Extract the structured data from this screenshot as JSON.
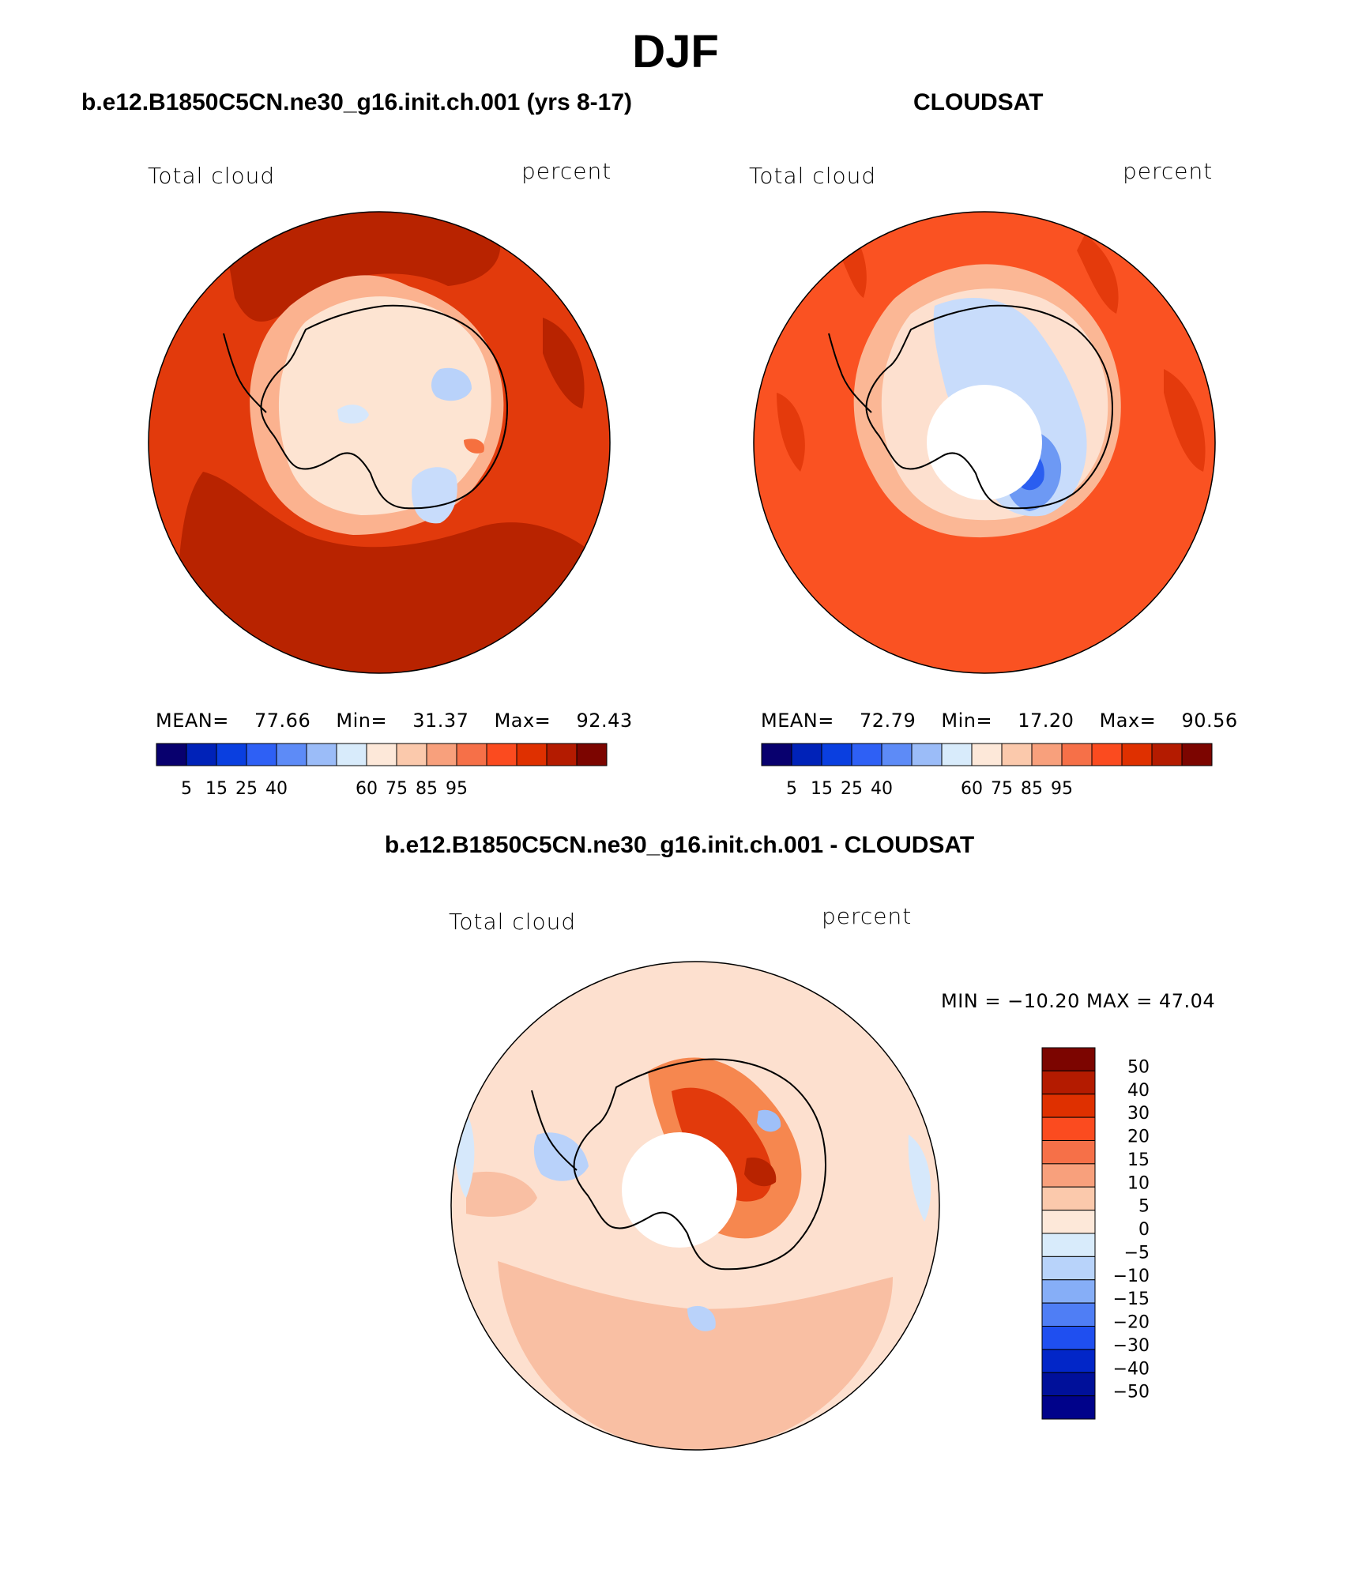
{
  "figure": {
    "title": "DJF"
  },
  "panels": [
    {
      "title": "b.e12.B1850C5CN.ne30_g16.init.ch.001 (yrs 8-17)",
      "left_label": "Total cloud",
      "right_label": "percent",
      "stats": {
        "mean_label": "MEAN=",
        "mean": "77.66",
        "min_label": "Min=",
        "min": "31.37",
        "max_label": "Max=",
        "max": "92.43"
      },
      "has_polar_hole": false
    },
    {
      "title": "CLOUDSAT",
      "left_label": "Total cloud",
      "right_label": "percent",
      "stats": {
        "mean_label": "MEAN=",
        "mean": "72.79",
        "min_label": "Min=",
        "min": "17.20",
        "max_label": "Max=",
        "max": "90.56"
      },
      "has_polar_hole": true
    },
    {
      "title": "b.e12.B1850C5CN.ne30_g16.init.ch.001 - CLOUDSAT",
      "left_label": "Total cloud",
      "right_label": "percent",
      "stats_line": "MIN = −10.20 MAX =   47.04",
      "has_polar_hole": true
    }
  ],
  "colorbar_horizontal": {
    "colors": [
      "#08006e",
      "#0022b8",
      "#0a3fe0",
      "#2e60f5",
      "#5d8bf7",
      "#9bbcf8",
      "#d8ebfb",
      "#fde8d9",
      "#fbc9ac",
      "#f8a07c",
      "#f67048",
      "#fb4b1f",
      "#df3000",
      "#b41b00",
      "#7c0500"
    ],
    "tick_labels": [
      "5",
      "15",
      "25",
      "40",
      "60",
      "75",
      "85",
      "95"
    ]
  },
  "colorbar_vertical": {
    "colors_top_to_bottom": [
      "#7c0500",
      "#b41b00",
      "#df3000",
      "#fb4b1f",
      "#f67048",
      "#f8a07c",
      "#fbc9ac",
      "#fde8d9",
      "#d8ebfb",
      "#b8d3fa",
      "#86aef7",
      "#4f7ef5",
      "#1f4ff0",
      "#0226c8",
      "#00109a",
      "#00028a"
    ],
    "tick_labels": [
      "50",
      "40",
      "30",
      "20",
      "15",
      "10",
      "5",
      "0",
      "−5",
      "−10",
      "−15",
      "−20",
      "−30",
      "−40",
      "−50"
    ]
  },
  "map_colors": {
    "model": {
      "ocean": "#e23a0c",
      "ocean_dark": "#b82300",
      "coast": "#fdbf9c",
      "ice": "#fde4d2",
      "blue_patch": "#c8dcfb",
      "blue_deep": "#9fc0f8"
    },
    "cloudsat": {
      "ocean": "#fa5222",
      "ocean_dark": "#e43a0c",
      "coast": "#fbb795",
      "ice": "#fde0cf",
      "blue_patch": "#c8dcfb",
      "blue_deep": "#6d99f4",
      "blue_core": "#2a5ef0"
    },
    "diff": {
      "ocean": "#fde0cf",
      "salmon": "#f9bfa3",
      "orange": "#f6874f",
      "red": "#e23a0c",
      "dark_red": "#b82300",
      "light_blue": "#d6e8fb",
      "blue": "#9fc0f8"
    }
  }
}
